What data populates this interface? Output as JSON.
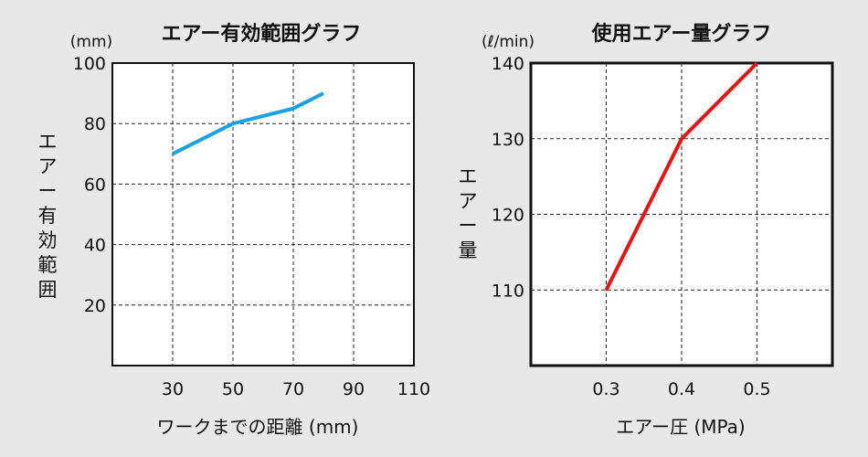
{
  "chart_data": [
    {
      "type": "line",
      "title": "エアー有効範囲グラフ",
      "y_unit": "(mm)",
      "ylabel": "エアー有効範囲",
      "xlabel": "ワークまでの距離 (mm)",
      "x_ticks": [
        "30",
        "50",
        "70",
        "90",
        "110"
      ],
      "y_ticks": [
        "100",
        "80",
        "60",
        "40",
        "20"
      ],
      "xlim": [
        10,
        110
      ],
      "ylim": [
        0,
        100
      ],
      "grid": true,
      "series": [
        {
          "color": "#1aa0e6",
          "x": [
            30,
            50,
            70,
            80
          ],
          "y": [
            70,
            80,
            85,
            90
          ]
        }
      ]
    },
    {
      "type": "line",
      "title": "使用エアー量グラフ",
      "y_unit": "(ℓ/min)",
      "ylabel": "エアー量",
      "xlabel": "エアー圧 (MPa)",
      "x_ticks": [
        "0.3",
        "0.4",
        "0.5"
      ],
      "y_ticks": [
        "140",
        "130",
        "120",
        "110"
      ],
      "xlim": [
        0.2,
        0.6
      ],
      "ylim": [
        100,
        140
      ],
      "grid": true,
      "series": [
        {
          "color": "#e31414",
          "x": [
            0.3,
            0.4,
            0.5
          ],
          "y": [
            110,
            130,
            140
          ]
        }
      ]
    }
  ]
}
